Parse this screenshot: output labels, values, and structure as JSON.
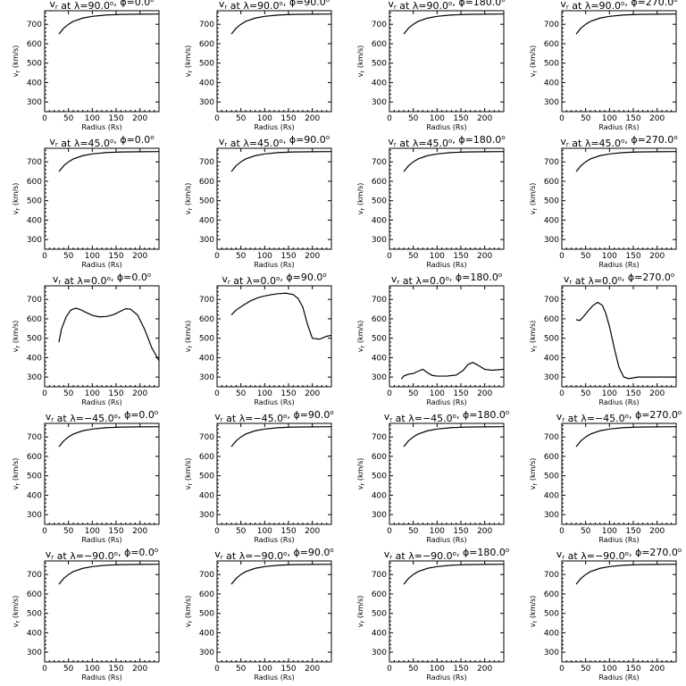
{
  "axis_labels": {
    "x": "Radius (Rs)",
    "y": "v_r (km/s)"
  },
  "chart_data": [
    {
      "type": "line",
      "title": "v_r at λ=90.0°, ϕ=0.0°",
      "xlabel": "Radius (Rs)",
      "ylabel": "v_r (km/s)",
      "xlim": [
        0,
        240
      ],
      "ylim": [
        250,
        770
      ],
      "xticks": [
        0,
        50,
        100,
        150,
        200
      ],
      "yticks": [
        300,
        400,
        500,
        600,
        700
      ],
      "x": [
        30,
        40,
        50,
        60,
        80,
        100,
        130,
        160,
        200,
        240
      ],
      "y": [
        650,
        680,
        700,
        715,
        732,
        741,
        748,
        751,
        752,
        753
      ]
    },
    {
      "type": "line",
      "title": "v_r at λ=90.0°, ϕ=90.0°",
      "xlabel": "Radius (Rs)",
      "ylabel": "v_r (km/s)",
      "xlim": [
        0,
        240
      ],
      "ylim": [
        250,
        770
      ],
      "xticks": [
        0,
        50,
        100,
        150,
        200
      ],
      "yticks": [
        300,
        400,
        500,
        600,
        700
      ],
      "x": [
        30,
        40,
        50,
        60,
        80,
        100,
        130,
        160,
        200,
        240
      ],
      "y": [
        650,
        680,
        700,
        715,
        732,
        741,
        748,
        751,
        752,
        753
      ]
    },
    {
      "type": "line",
      "title": "v_r at λ=90.0°, ϕ=180.0°",
      "xlabel": "Radius (Rs)",
      "ylabel": "v_r (km/s)",
      "xlim": [
        0,
        240
      ],
      "ylim": [
        250,
        770
      ],
      "xticks": [
        0,
        50,
        100,
        150,
        200
      ],
      "yticks": [
        300,
        400,
        500,
        600,
        700
      ],
      "x": [
        30,
        40,
        50,
        60,
        80,
        100,
        130,
        160,
        200,
        240
      ],
      "y": [
        650,
        680,
        700,
        715,
        732,
        741,
        748,
        751,
        752,
        753
      ]
    },
    {
      "type": "line",
      "title": "v_r at λ=90.0°, ϕ=270.0°",
      "xlabel": "Radius (Rs)",
      "ylabel": "v_r (km/s)",
      "xlim": [
        0,
        240
      ],
      "ylim": [
        250,
        770
      ],
      "xticks": [
        0,
        50,
        100,
        150,
        200
      ],
      "yticks": [
        300,
        400,
        500,
        600,
        700
      ],
      "x": [
        30,
        40,
        50,
        60,
        80,
        100,
        130,
        160,
        200,
        240
      ],
      "y": [
        650,
        680,
        700,
        715,
        732,
        741,
        748,
        751,
        752,
        753
      ]
    },
    {
      "type": "line",
      "title": "v_r at λ=45.0°, ϕ=0.0°",
      "xlabel": "Radius (Rs)",
      "ylabel": "v_r (km/s)",
      "xlim": [
        0,
        240
      ],
      "ylim": [
        250,
        770
      ],
      "xticks": [
        0,
        50,
        100,
        150,
        200
      ],
      "yticks": [
        300,
        400,
        500,
        600,
        700
      ],
      "x": [
        30,
        40,
        50,
        60,
        80,
        100,
        130,
        160,
        200,
        240
      ],
      "y": [
        650,
        680,
        700,
        715,
        732,
        741,
        748,
        751,
        752,
        753
      ]
    },
    {
      "type": "line",
      "title": "v_r at λ=45.0°, ϕ=90.0°",
      "xlabel": "Radius (Rs)",
      "ylabel": "v_r (km/s)",
      "xlim": [
        0,
        240
      ],
      "ylim": [
        250,
        770
      ],
      "xticks": [
        0,
        50,
        100,
        150,
        200
      ],
      "yticks": [
        300,
        400,
        500,
        600,
        700
      ],
      "x": [
        30,
        40,
        50,
        60,
        80,
        100,
        130,
        160,
        200,
        240
      ],
      "y": [
        650,
        680,
        700,
        715,
        732,
        741,
        748,
        751,
        752,
        753
      ]
    },
    {
      "type": "line",
      "title": "v_r at λ=45.0°, ϕ=180.0°",
      "xlabel": "Radius (Rs)",
      "ylabel": "v_r (km/s)",
      "xlim": [
        0,
        240
      ],
      "ylim": [
        250,
        770
      ],
      "xticks": [
        0,
        50,
        100,
        150,
        200
      ],
      "yticks": [
        300,
        400,
        500,
        600,
        700
      ],
      "x": [
        30,
        40,
        50,
        60,
        80,
        100,
        130,
        160,
        200,
        240
      ],
      "y": [
        650,
        680,
        700,
        715,
        732,
        741,
        748,
        751,
        752,
        753
      ]
    },
    {
      "type": "line",
      "title": "v_r at λ=45.0°, ϕ=270.0°",
      "xlabel": "Radius (Rs)",
      "ylabel": "v_r (km/s)",
      "xlim": [
        0,
        240
      ],
      "ylim": [
        250,
        770
      ],
      "xticks": [
        0,
        50,
        100,
        150,
        200
      ],
      "yticks": [
        300,
        400,
        500,
        600,
        700
      ],
      "x": [
        30,
        40,
        50,
        60,
        80,
        100,
        130,
        160,
        200,
        240
      ],
      "y": [
        650,
        680,
        700,
        715,
        732,
        741,
        748,
        751,
        752,
        753
      ]
    },
    {
      "type": "line",
      "title": "v_r at λ=0.0°, ϕ=0.0°",
      "xlabel": "Radius (Rs)",
      "ylabel": "v_r (km/s)",
      "xlim": [
        0,
        240
      ],
      "ylim": [
        250,
        770
      ],
      "xticks": [
        0,
        50,
        100,
        150,
        200
      ],
      "yticks": [
        300,
        400,
        500,
        600,
        700
      ],
      "x": [
        30,
        35,
        45,
        55,
        65,
        75,
        85,
        100,
        115,
        130,
        145,
        160,
        170,
        180,
        195,
        210,
        225,
        240
      ],
      "y": [
        480,
        545,
        610,
        645,
        655,
        648,
        635,
        618,
        610,
        612,
        622,
        640,
        652,
        650,
        620,
        545,
        450,
        385
      ]
    },
    {
      "type": "line",
      "title": "v_r at λ=0.0°, ϕ=90.0°",
      "xlabel": "Radius (Rs)",
      "ylabel": "v_r (km/s)",
      "xlim": [
        0,
        240
      ],
      "ylim": [
        250,
        770
      ],
      "xticks": [
        0,
        50,
        100,
        150,
        200
      ],
      "yticks": [
        300,
        400,
        500,
        600,
        700
      ],
      "x": [
        30,
        40,
        55,
        70,
        85,
        100,
        115,
        130,
        145,
        160,
        170,
        180,
        190,
        200,
        215,
        230,
        240
      ],
      "y": [
        620,
        645,
        670,
        692,
        708,
        718,
        725,
        730,
        732,
        725,
        705,
        660,
        570,
        500,
        495,
        510,
        515
      ]
    },
    {
      "type": "line",
      "title": "v_r at λ=0.0°, ϕ=180.0°",
      "xlabel": "Radius (Rs)",
      "ylabel": "v_r (km/s)",
      "xlim": [
        0,
        240
      ],
      "ylim": [
        250,
        770
      ],
      "xticks": [
        0,
        50,
        100,
        150,
        200
      ],
      "yticks": [
        300,
        400,
        500,
        600,
        700
      ],
      "x": [
        25,
        30,
        40,
        50,
        60,
        70,
        80,
        90,
        100,
        120,
        140,
        155,
        165,
        175,
        185,
        200,
        215,
        240
      ],
      "y": [
        290,
        305,
        315,
        318,
        330,
        340,
        322,
        308,
        305,
        305,
        310,
        335,
        365,
        375,
        362,
        340,
        335,
        340
      ]
    },
    {
      "type": "line",
      "title": "v_r at λ=0.0°, ϕ=270.0°",
      "xlabel": "Radius (Rs)",
      "ylabel": "v_r (km/s)",
      "xlim": [
        0,
        240
      ],
      "ylim": [
        250,
        770
      ],
      "xticks": [
        0,
        50,
        100,
        150,
        200
      ],
      "yticks": [
        300,
        400,
        500,
        600,
        700
      ],
      "x": [
        30,
        38,
        45,
        55,
        65,
        75,
        85,
        92,
        100,
        110,
        120,
        130,
        140,
        160,
        200,
        240
      ],
      "y": [
        595,
        592,
        610,
        640,
        668,
        685,
        670,
        630,
        560,
        450,
        350,
        300,
        292,
        300,
        300,
        300
      ]
    },
    {
      "type": "line",
      "title": "v_r at λ=−45.0°, ϕ=0.0°",
      "xlabel": "Radius (Rs)",
      "ylabel": "v_r (km/s)",
      "xlim": [
        0,
        240
      ],
      "ylim": [
        250,
        770
      ],
      "xticks": [
        0,
        50,
        100,
        150,
        200
      ],
      "yticks": [
        300,
        400,
        500,
        600,
        700
      ],
      "x": [
        30,
        40,
        50,
        60,
        80,
        100,
        130,
        160,
        200,
        240
      ],
      "y": [
        650,
        680,
        700,
        715,
        732,
        741,
        748,
        751,
        752,
        753
      ]
    },
    {
      "type": "line",
      "title": "v_r at λ=−45.0°, ϕ=90.0°",
      "xlabel": "Radius (Rs)",
      "ylabel": "v_r (km/s)",
      "xlim": [
        0,
        240
      ],
      "ylim": [
        250,
        770
      ],
      "xticks": [
        0,
        50,
        100,
        150,
        200
      ],
      "yticks": [
        300,
        400,
        500,
        600,
        700
      ],
      "x": [
        30,
        40,
        50,
        60,
        80,
        100,
        130,
        160,
        200,
        240
      ],
      "y": [
        650,
        680,
        700,
        715,
        732,
        741,
        748,
        751,
        752,
        753
      ]
    },
    {
      "type": "line",
      "title": "v_r at λ=−45.0°, ϕ=180.0°",
      "xlabel": "Radius (Rs)",
      "ylabel": "v_r (km/s)",
      "xlim": [
        0,
        240
      ],
      "ylim": [
        250,
        770
      ],
      "xticks": [
        0,
        50,
        100,
        150,
        200
      ],
      "yticks": [
        300,
        400,
        500,
        600,
        700
      ],
      "x": [
        30,
        40,
        50,
        60,
        80,
        100,
        130,
        160,
        200,
        240
      ],
      "y": [
        650,
        680,
        700,
        715,
        732,
        741,
        748,
        751,
        752,
        753
      ]
    },
    {
      "type": "line",
      "title": "v_r at λ=−45.0°, ϕ=270.0°",
      "xlabel": "Radius (Rs)",
      "ylabel": "v_r (km/s)",
      "xlim": [
        0,
        240
      ],
      "ylim": [
        250,
        770
      ],
      "xticks": [
        0,
        50,
        100,
        150,
        200
      ],
      "yticks": [
        300,
        400,
        500,
        600,
        700
      ],
      "x": [
        30,
        40,
        50,
        60,
        80,
        100,
        130,
        160,
        200,
        240
      ],
      "y": [
        650,
        680,
        700,
        715,
        732,
        741,
        748,
        751,
        752,
        753
      ]
    },
    {
      "type": "line",
      "title": "v_r at λ=−90.0°, ϕ=0.0°",
      "xlabel": "Radius (Rs)",
      "ylabel": "v_r (km/s)",
      "xlim": [
        0,
        240
      ],
      "ylim": [
        250,
        770
      ],
      "xticks": [
        0,
        50,
        100,
        150,
        200
      ],
      "yticks": [
        300,
        400,
        500,
        600,
        700
      ],
      "x": [
        30,
        40,
        50,
        60,
        80,
        100,
        130,
        160,
        200,
        240
      ],
      "y": [
        650,
        680,
        700,
        715,
        732,
        741,
        748,
        751,
        752,
        753
      ]
    },
    {
      "type": "line",
      "title": "v_r at λ=−90.0°, ϕ=90.0°",
      "xlabel": "Radius (Rs)",
      "ylabel": "v_r (km/s)",
      "xlim": [
        0,
        240
      ],
      "ylim": [
        250,
        770
      ],
      "xticks": [
        0,
        50,
        100,
        150,
        200
      ],
      "yticks": [
        300,
        400,
        500,
        600,
        700
      ],
      "x": [
        30,
        40,
        50,
        60,
        80,
        100,
        130,
        160,
        200,
        240
      ],
      "y": [
        650,
        680,
        700,
        715,
        732,
        741,
        748,
        751,
        752,
        753
      ]
    },
    {
      "type": "line",
      "title": "v_r at λ=−90.0°, ϕ=180.0°",
      "xlabel": "Radius (Rs)",
      "ylabel": "v_r (km/s)",
      "xlim": [
        0,
        240
      ],
      "ylim": [
        250,
        770
      ],
      "xticks": [
        0,
        50,
        100,
        150,
        200
      ],
      "yticks": [
        300,
        400,
        500,
        600,
        700
      ],
      "x": [
        30,
        40,
        50,
        60,
        80,
        100,
        130,
        160,
        200,
        240
      ],
      "y": [
        650,
        680,
        700,
        715,
        732,
        741,
        748,
        751,
        752,
        753
      ]
    },
    {
      "type": "line",
      "title": "v_r at λ=−90.0°, ϕ=270.0°",
      "xlabel": "Radius (Rs)",
      "ylabel": "v_r (km/s)",
      "xlim": [
        0,
        240
      ],
      "ylim": [
        250,
        770
      ],
      "xticks": [
        0,
        50,
        100,
        150,
        200
      ],
      "yticks": [
        300,
        400,
        500,
        600,
        700
      ],
      "x": [
        30,
        40,
        50,
        60,
        80,
        100,
        130,
        160,
        200,
        240
      ],
      "y": [
        650,
        680,
        700,
        715,
        732,
        741,
        748,
        751,
        752,
        753
      ]
    }
  ]
}
